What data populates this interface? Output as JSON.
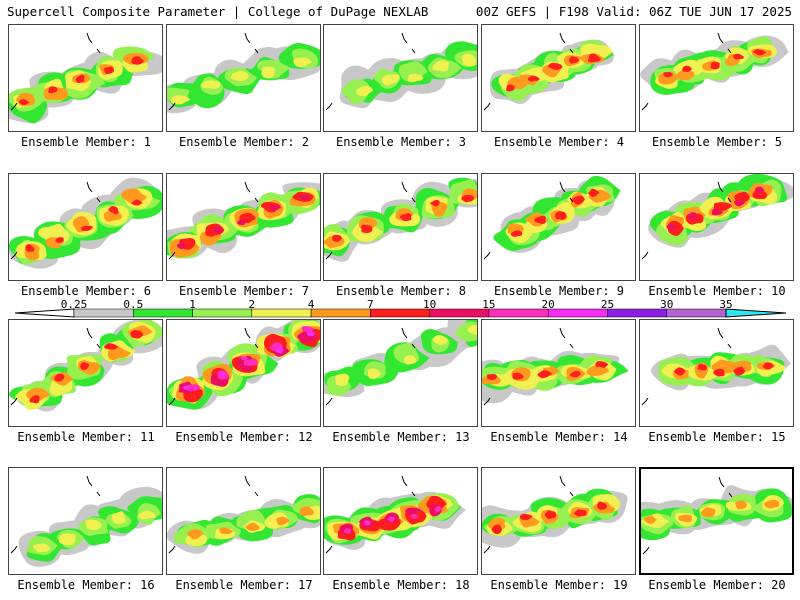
{
  "header": {
    "left": "Supercell Composite Parameter | College of DuPage NEXLAB",
    "right": "00Z GEFS | F198 Valid: 06Z TUE JUN 17 2025"
  },
  "legend": {
    "ticks": [
      "0.25",
      "0.5",
      "1",
      "2",
      "4",
      "7",
      "10",
      "15",
      "20",
      "25",
      "30",
      "35"
    ],
    "colors": [
      "#c8c8c8",
      "#32e632",
      "#96f050",
      "#f0f050",
      "#ff9a1e",
      "#ff1e1e",
      "#eb0f64",
      "#ff2dbe",
      "#f52df5",
      "#8c1ee6",
      "#b464d2",
      "#32e6f0"
    ],
    "left_arrow_color": "#ffffff",
    "right_arrow_color": "#32e6f0"
  },
  "panels": [
    {
      "label": "Ensemble Member: 1",
      "level": 5
    },
    {
      "label": "Ensemble Member: 2",
      "level": 3
    },
    {
      "label": "Ensemble Member: 3",
      "level": 3
    },
    {
      "label": "Ensemble Member: 4",
      "level": 5
    },
    {
      "label": "Ensemble Member: 5",
      "level": 5
    },
    {
      "label": "Ensemble Member: 6",
      "level": 5
    },
    {
      "label": "Ensemble Member: 7",
      "level": 6
    },
    {
      "label": "Ensemble Member: 8",
      "level": 5
    },
    {
      "label": "Ensemble Member: 9",
      "level": 5
    },
    {
      "label": "Ensemble Member: 10",
      "level": 6
    },
    {
      "label": "Ensemble Member: 11",
      "level": 5
    },
    {
      "label": "Ensemble Member: 12",
      "level": 8
    },
    {
      "label": "Ensemble Member: 13",
      "level": 3
    },
    {
      "label": "Ensemble Member: 14",
      "level": 5
    },
    {
      "label": "Ensemble Member: 15",
      "level": 5
    },
    {
      "label": "Ensemble Member: 16",
      "level": 3
    },
    {
      "label": "Ensemble Member: 17",
      "level": 4
    },
    {
      "label": "Ensemble Member: 18",
      "level": 7
    },
    {
      "label": "Ensemble Member: 19",
      "level": 5
    },
    {
      "label": "Ensemble Member: 20",
      "level": 4
    }
  ],
  "selected_panel": 20
}
